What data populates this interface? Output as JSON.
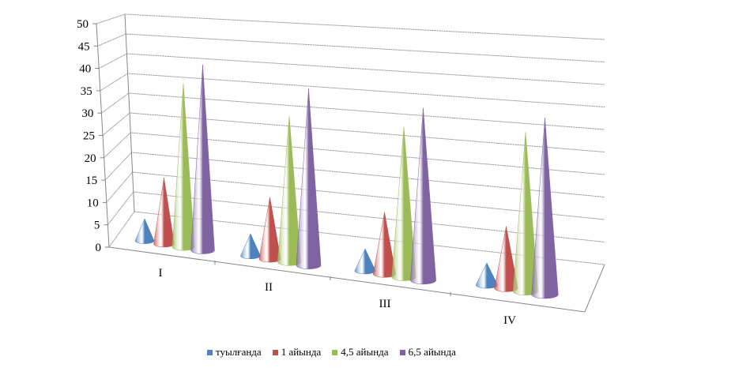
{
  "chart_data": {
    "type": "bar",
    "subtype": "3d-cone",
    "categories": [
      "I",
      "II",
      "III",
      "IV"
    ],
    "series": [
      {
        "name": "туылғанда",
        "color": "#4f81bd",
        "values": [
          5,
          5,
          5,
          5
        ]
      },
      {
        "name": "1 айында",
        "color": "#c0504d",
        "values": [
          15,
          14,
          14,
          14
        ]
      },
      {
        "name": "4,5 айында",
        "color": "#9bbb59",
        "values": [
          37,
          33,
          34,
          36
        ]
      },
      {
        "name": "6,5 айында",
        "color": "#8064a2",
        "values": [
          42,
          40,
          39,
          40
        ]
      }
    ],
    "yticks": [
      "0",
      "5",
      "10",
      "15",
      "20",
      "25",
      "30",
      "35",
      "40",
      "45",
      "50"
    ],
    "ylim": [
      0,
      50
    ],
    "grid": true,
    "legend": "bottom"
  }
}
